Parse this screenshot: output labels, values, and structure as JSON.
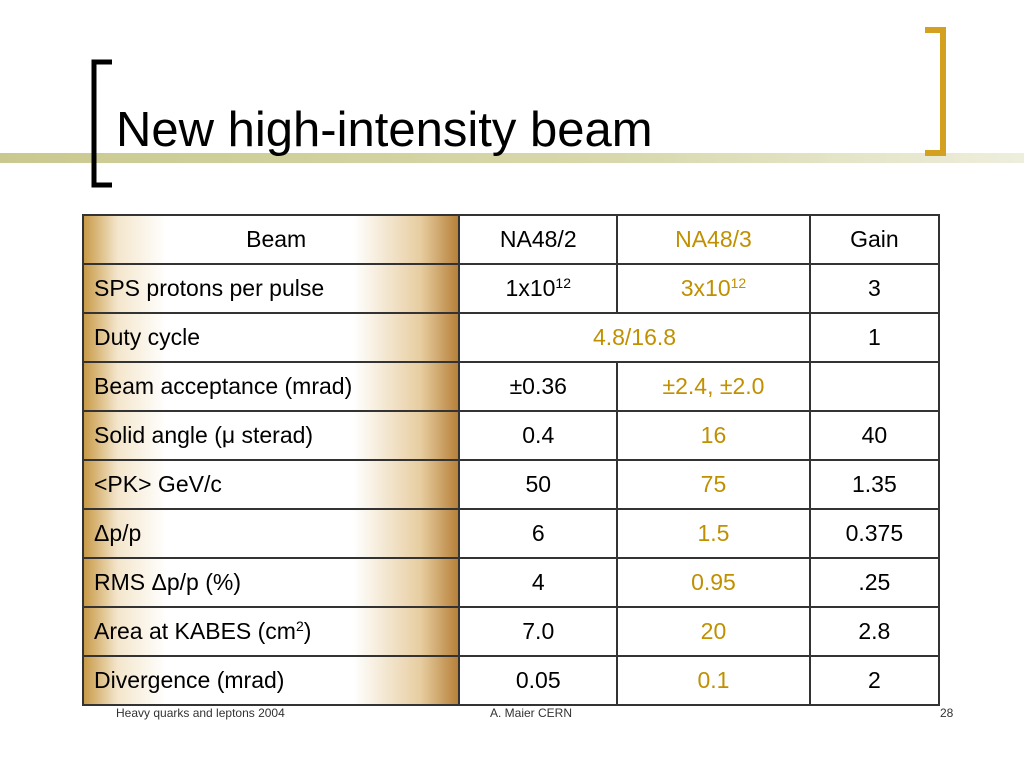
{
  "title": "New high-intensity beam",
  "table": {
    "header": [
      "Beam",
      "NA48/2",
      "NA48/3",
      "Gain"
    ],
    "rows": [
      {
        "label": {
          "text": "SPS protons per pulse"
        },
        "na48_2": {
          "text": "1x10",
          "sup": "12"
        },
        "na48_3": {
          "text": "3x10",
          "sup": "12"
        },
        "gain": {
          "text": "3"
        }
      },
      {
        "label": {
          "text": "Duty cycle"
        },
        "merged": {
          "text": "4.8/16.8"
        },
        "gain": {
          "text": "1"
        }
      },
      {
        "label": {
          "text": "Beam acceptance (mrad)"
        },
        "na48_2": {
          "text": "±0.36"
        },
        "na48_3": {
          "text": "±2.4, ±2.0"
        }
      },
      {
        "label": {
          "text": "Solid angle (μ sterad)"
        },
        "na48_2": {
          "text": "0.4"
        },
        "na48_3": {
          "text": "16"
        },
        "gain": {
          "text": "40"
        }
      },
      {
        "label": {
          "text": "<PK> GeV/c"
        },
        "na48_2": {
          "text": "50"
        },
        "na48_3": {
          "text": "75"
        },
        "gain": {
          "text": "1.35"
        }
      },
      {
        "label": {
          "text": "Δp/p"
        },
        "na48_2": {
          "text": "6"
        },
        "na48_3": {
          "text": "1.5"
        },
        "gain": {
          "text": "0.375"
        }
      },
      {
        "label": {
          "text": "RMS Δp/p (%)"
        },
        "na48_2": {
          "text": "4"
        },
        "na48_3": {
          "text": "0.95"
        },
        "gain": {
          "text": ".25"
        }
      },
      {
        "label": {
          "text": "Area at KABES (cm",
          "sup": "2",
          "after": ")"
        },
        "na48_2": {
          "text": "7.0"
        },
        "na48_3": {
          "text": "20"
        },
        "gain": {
          "text": "2.8"
        }
      },
      {
        "label": {
          "text": "Divergence (mrad)"
        },
        "na48_2": {
          "text": "0.05"
        },
        "na48_3": {
          "text": "0.1"
        },
        "gain": {
          "text": "2"
        }
      }
    ]
  },
  "footer": {
    "left": "Heavy quarks and leptons 2004",
    "center": "A. Maier CERN",
    "page": "28"
  }
}
